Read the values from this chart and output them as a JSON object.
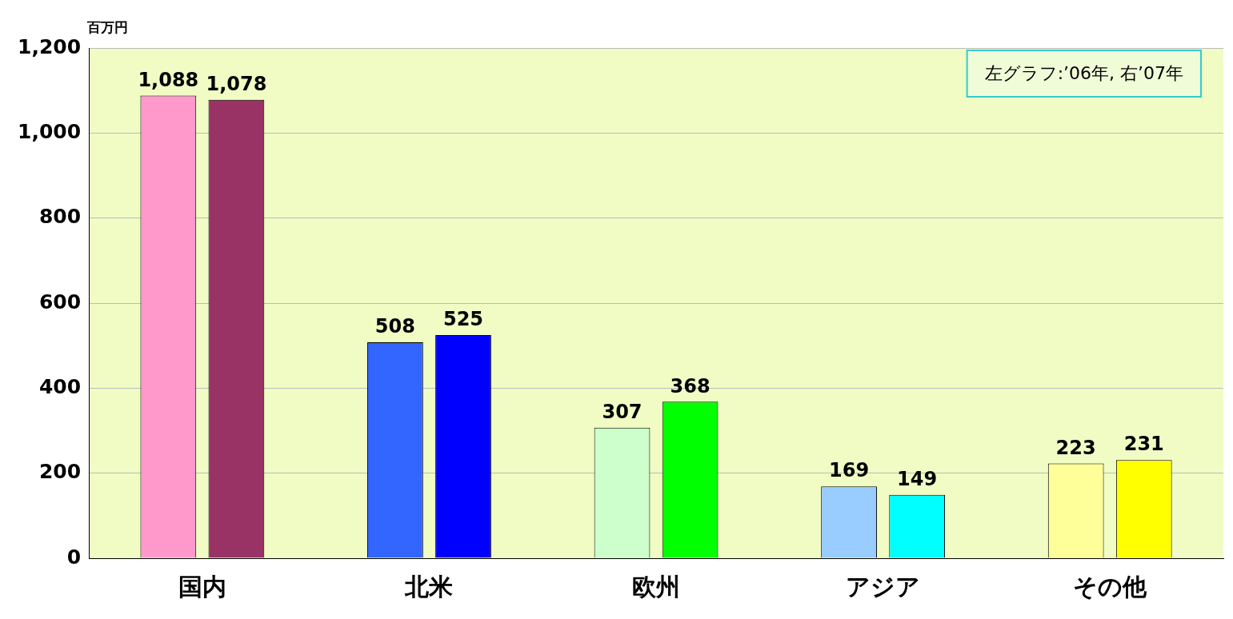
{
  "chart_data": {
    "type": "bar",
    "ylabel": "百万円",
    "annotations": [
      "左グラフ:’06年, 右’07年"
    ],
    "categories": [
      "国内",
      "北米",
      "欧州",
      "アジア",
      "その他"
    ],
    "series": [
      {
        "colors": [
          "#ff99cc",
          "#3366ff",
          "#ccffcc",
          "#99ccff",
          "#ffff99"
        ],
        "values": [
          1088,
          508,
          307,
          169,
          223
        ],
        "value_labels": [
          "1,088",
          "508",
          "307",
          "169",
          "223"
        ]
      },
      {
        "colors": [
          "#993366",
          "#0000ff",
          "#00ff00",
          "#00ffff",
          "#ffff00"
        ],
        "values": [
          1078,
          525,
          368,
          149,
          231
        ],
        "value_labels": [
          "1,078",
          "525",
          "368",
          "149",
          "231"
        ]
      }
    ],
    "ylim": [
      0,
      1200
    ],
    "yticks": [
      0,
      200,
      400,
      600,
      800,
      {
        "value": 1000,
        "label": "1,000"
      },
      {
        "value": 1200,
        "label": "1,200"
      }
    ],
    "grid": "y",
    "legend": false
  }
}
